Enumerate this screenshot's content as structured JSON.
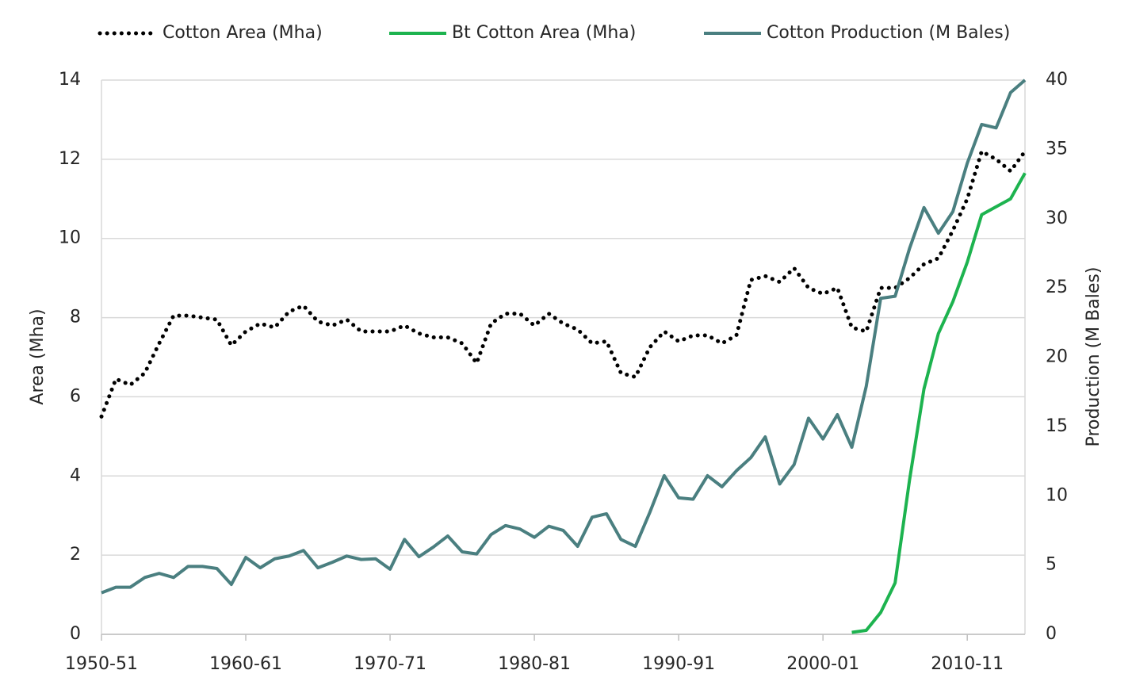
{
  "chart_data": {
    "type": "line",
    "categories": [
      "1950-51",
      null,
      null,
      null,
      null,
      null,
      null,
      null,
      null,
      null,
      "1960-61",
      null,
      null,
      null,
      null,
      null,
      null,
      null,
      null,
      null,
      "1970-71",
      null,
      null,
      null,
      null,
      null,
      null,
      null,
      null,
      null,
      "1980-81",
      null,
      null,
      null,
      null,
      null,
      null,
      null,
      null,
      null,
      "1990-91",
      null,
      null,
      null,
      null,
      null,
      null,
      null,
      null,
      null,
      "2000-01",
      null,
      null,
      null,
      null,
      null,
      null,
      null,
      null,
      null,
      "2010-11",
      null,
      null,
      null,
      null
    ],
    "ylabel": "Area (Mha)",
    "y2label": "Production (M Bales)",
    "ylim": [
      0,
      14
    ],
    "yticks": [
      0,
      2,
      4,
      6,
      8,
      10,
      12,
      14
    ],
    "y2lim": [
      0,
      40
    ],
    "y2ticks": [
      0,
      5,
      10,
      15,
      20,
      25,
      30,
      35,
      40
    ],
    "grid": true,
    "legend": "top",
    "series": [
      {
        "name": "Cotton Area (Mha)",
        "color": "#000000",
        "style": "dotted",
        "values": [
          5.5,
          6.45,
          6.3,
          6.6,
          7.35,
          8.05,
          8.05,
          8.0,
          7.95,
          7.3,
          7.65,
          7.85,
          7.75,
          8.15,
          8.3,
          7.9,
          7.8,
          7.95,
          7.65,
          7.65,
          7.65,
          7.8,
          7.6,
          7.5,
          7.5,
          7.35,
          6.85,
          7.85,
          8.1,
          8.1,
          7.8,
          8.1,
          7.85,
          7.7,
          7.35,
          7.4,
          6.6,
          6.5,
          7.25,
          7.65,
          7.4,
          7.55,
          7.55,
          7.35,
          7.55,
          8.95,
          9.05,
          8.9,
          9.25,
          8.75,
          8.6,
          8.75,
          7.75,
          7.65,
          8.75,
          8.75,
          9.0,
          9.35,
          9.5,
          10.2,
          11.0,
          12.2,
          12.0,
          11.7,
          12.2
        ]
      },
      {
        "name": "Bt Cotton Area (Mha)",
        "color": "#1db34f",
        "style": "solid",
        "values": [
          null,
          null,
          null,
          null,
          null,
          null,
          null,
          null,
          null,
          null,
          null,
          null,
          null,
          null,
          null,
          null,
          null,
          null,
          null,
          null,
          null,
          null,
          null,
          null,
          null,
          null,
          null,
          null,
          null,
          null,
          null,
          null,
          null,
          null,
          null,
          null,
          null,
          null,
          null,
          null,
          null,
          null,
          null,
          null,
          null,
          null,
          null,
          null,
          null,
          null,
          null,
          null,
          0.05,
          0.1,
          0.55,
          1.3,
          3.9,
          6.2,
          7.6,
          8.4,
          9.4,
          10.6,
          10.8,
          11.0,
          11.65
        ]
      },
      {
        "name": "Cotton Production (M Bales)",
        "color": "#4a7f80",
        "style": "solid",
        "axis": "y2",
        "values": [
          3.0,
          3.4,
          3.4,
          4.1,
          4.4,
          4.1,
          4.9,
          4.9,
          4.75,
          3.6,
          5.55,
          4.8,
          5.45,
          5.65,
          6.05,
          4.8,
          5.2,
          5.65,
          5.4,
          5.45,
          4.7,
          6.85,
          5.6,
          6.3,
          7.1,
          5.95,
          5.8,
          7.2,
          7.85,
          7.6,
          7.0,
          7.8,
          7.5,
          6.35,
          8.45,
          8.7,
          6.85,
          6.35,
          8.8,
          11.45,
          9.85,
          9.75,
          11.45,
          10.65,
          11.8,
          12.75,
          14.25,
          10.85,
          12.25,
          15.6,
          14.1,
          15.85,
          13.5,
          17.9,
          24.25,
          24.4,
          27.85,
          30.8,
          28.95,
          30.5,
          34.0,
          36.8,
          36.55,
          39.1,
          40.0
        ]
      }
    ]
  }
}
